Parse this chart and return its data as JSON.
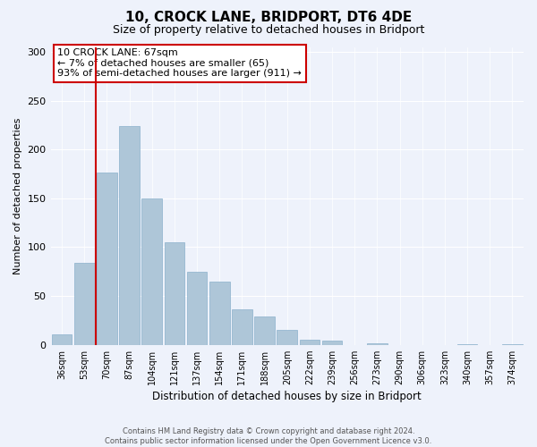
{
  "title": "10, CROCK LANE, BRIDPORT, DT6 4DE",
  "subtitle": "Size of property relative to detached houses in Bridport",
  "xlabel": "Distribution of detached houses by size in Bridport",
  "ylabel": "Number of detached properties",
  "bar_labels": [
    "36sqm",
    "53sqm",
    "70sqm",
    "87sqm",
    "104sqm",
    "121sqm",
    "137sqm",
    "154sqm",
    "171sqm",
    "188sqm",
    "205sqm",
    "222sqm",
    "239sqm",
    "256sqm",
    "273sqm",
    "290sqm",
    "306sqm",
    "323sqm",
    "340sqm",
    "357sqm",
    "374sqm"
  ],
  "bar_values": [
    11,
    84,
    176,
    224,
    150,
    105,
    75,
    65,
    36,
    29,
    15,
    5,
    4,
    0,
    2,
    0,
    0,
    0,
    1,
    0,
    1
  ],
  "bar_color": "#aec6d8",
  "highlight_bar_index": 1,
  "highlight_color": "#cc0000",
  "annotation_title": "10 CROCK LANE: 67sqm",
  "annotation_line1": "← 7% of detached houses are smaller (65)",
  "annotation_line2": "93% of semi-detached houses are larger (911) →",
  "annotation_box_color": "#ffffff",
  "annotation_box_edgecolor": "#cc0000",
  "ylim": [
    0,
    305
  ],
  "footer_line1": "Contains HM Land Registry data © Crown copyright and database right 2024.",
  "footer_line2": "Contains public sector information licensed under the Open Government Licence v3.0.",
  "background_color": "#eef2fb"
}
